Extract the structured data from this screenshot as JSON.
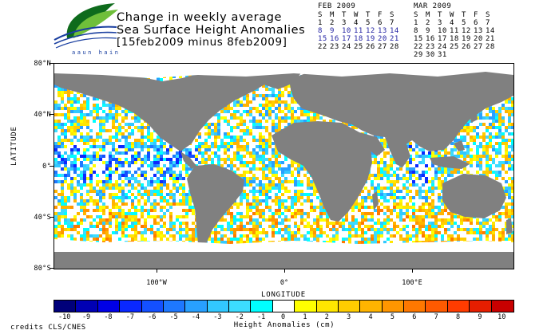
{
  "header": {
    "logo_text": "aaun  hain",
    "title_line1": "Change in weekly average",
    "title_line2": "Sea Surface Height Anomalies",
    "title_line3": "[15feb2009 minus 8feb2009]"
  },
  "calendars": [
    {
      "month": "FEB 2009",
      "weekdays": [
        "S",
        "M",
        "T",
        "W",
        "T",
        "F",
        "S"
      ],
      "weeks": [
        [
          "1",
          "2",
          "3",
          "4",
          "5",
          "6",
          "7"
        ],
        [
          "8",
          "9",
          "10",
          "11",
          "12",
          "13",
          "14"
        ],
        [
          "15",
          "16",
          "17",
          "18",
          "19",
          "20",
          "21"
        ],
        [
          "22",
          "23",
          "24",
          "25",
          "26",
          "27",
          "28"
        ]
      ],
      "highlighted_weeks": [
        1,
        2
      ]
    },
    {
      "month": "MAR 2009",
      "weekdays": [
        "S",
        "M",
        "T",
        "W",
        "T",
        "F",
        "S"
      ],
      "weeks": [
        [
          "1",
          "2",
          "3",
          "4",
          "5",
          "6",
          "7"
        ],
        [
          "8",
          "9",
          "10",
          "11",
          "12",
          "13",
          "14"
        ],
        [
          "15",
          "16",
          "17",
          "18",
          "19",
          "20",
          "21"
        ],
        [
          "22",
          "23",
          "24",
          "25",
          "26",
          "27",
          "28"
        ],
        [
          "29",
          "30",
          "31",
          "",
          "",
          "",
          ""
        ]
      ],
      "highlighted_weeks": []
    }
  ],
  "map": {
    "x_axis_title": "LONGITUDE",
    "y_axis_title": "LATITUDE",
    "lat_labels": [
      "80°N",
      "40°N",
      "0°",
      "40°S",
      "80°S"
    ],
    "lon_labels": [
      "100°W",
      "0°",
      "100°E"
    ],
    "land_color": "#808080",
    "ice_color": "#ffffff"
  },
  "colorbar": {
    "title": "Height Anomalies (cm)",
    "ticks": [
      "-10",
      "-9",
      "-8",
      "-7",
      "-6",
      "-5",
      "-4",
      "-3",
      "-2",
      "-1",
      "0",
      "1",
      "2",
      "3",
      "4",
      "5",
      "6",
      "7",
      "8",
      "9",
      "10"
    ],
    "colors": [
      "#00007a",
      "#0000b4",
      "#0000e6",
      "#0a28ff",
      "#1450ff",
      "#1e78ff",
      "#28a0ff",
      "#32c8ff",
      "#3cdcff",
      "#00ffff",
      "#ffffff",
      "#ffff00",
      "#ffe600",
      "#ffcd00",
      "#ffb400",
      "#ff9600",
      "#ff7800",
      "#ff5a00",
      "#ff3c00",
      "#e61e00",
      "#c80000"
    ]
  },
  "footer": {
    "credits": "credits CLS/CNES"
  }
}
